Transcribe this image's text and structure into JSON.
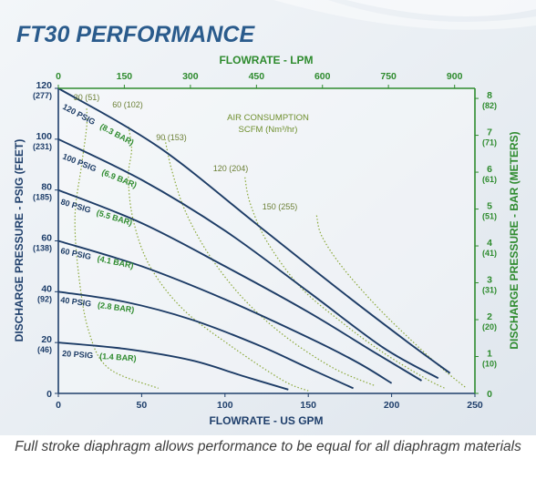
{
  "chart_data": {
    "type": "line",
    "title": "FT30 PERFORMANCE",
    "top_axis": {
      "label": "FLOWRATE - LPM",
      "ticks": [
        "0",
        "150",
        "300",
        "450",
        "600",
        "750",
        "900"
      ],
      "tick_values_gpm": [
        0,
        39.6,
        79.25,
        118.9,
        158.5,
        198.1,
        237.8
      ]
    },
    "x_axis": {
      "label": "FLOWRATE - US GPM",
      "ticks": [
        "0",
        "50",
        "100",
        "150",
        "200",
        "250"
      ],
      "range": [
        0,
        250
      ]
    },
    "y_axis_left": {
      "label": "DISCHARGE PRESSURE - PSIG (FEET)",
      "range": [
        0,
        120
      ],
      "ticks": [
        {
          "value": 0,
          "psig": "0",
          "feet": ""
        },
        {
          "value": 20,
          "psig": "20",
          "feet": "(46)"
        },
        {
          "value": 40,
          "psig": "40",
          "feet": "(92)"
        },
        {
          "value": 60,
          "psig": "60",
          "feet": "(138)"
        },
        {
          "value": 80,
          "psig": "80",
          "feet": "(185)"
        },
        {
          "value": 100,
          "psig": "100",
          "feet": "(231)"
        },
        {
          "value": 120,
          "psig": "120",
          "feet": "(277)"
        }
      ]
    },
    "y_axis_right": {
      "label": "DISCHARGE PRESSURE - BAR (METERS)",
      "ticks": [
        {
          "value": 0,
          "bar": "0",
          "meters": ""
        },
        {
          "value": 1,
          "bar": "1",
          "meters": "(10)"
        },
        {
          "value": 2,
          "bar": "2",
          "meters": "(20)"
        },
        {
          "value": 3,
          "bar": "3",
          "meters": "(31)"
        },
        {
          "value": 4,
          "bar": "4",
          "meters": "(41)"
        },
        {
          "value": 5,
          "bar": "5",
          "meters": "(51)"
        },
        {
          "value": 6,
          "bar": "6",
          "meters": "(61)"
        },
        {
          "value": 7,
          "bar": "7",
          "meters": "(71)"
        },
        {
          "value": 8,
          "bar": "8",
          "meters": "(82)"
        }
      ]
    },
    "pressure_curves": [
      {
        "psig": "120 PSIG",
        "bar": "(8.3 BAR)",
        "points": [
          [
            0,
            120
          ],
          [
            60,
            97
          ],
          [
            120,
            66
          ],
          [
            170,
            40
          ],
          [
            210,
            20
          ],
          [
            235,
            8
          ]
        ]
      },
      {
        "psig": "100 PSIG",
        "bar": "(6.9 BAR)",
        "points": [
          [
            0,
            100
          ],
          [
            50,
            84
          ],
          [
            100,
            64
          ],
          [
            150,
            40
          ],
          [
            195,
            18
          ],
          [
            228,
            6
          ]
        ]
      },
      {
        "psig": "80 PSIG",
        "bar": "(5.5 BAR)",
        "points": [
          [
            0,
            80
          ],
          [
            50,
            67
          ],
          [
            100,
            50
          ],
          [
            150,
            32
          ],
          [
            190,
            16
          ],
          [
            218,
            5
          ]
        ]
      },
      {
        "psig": "60 PSIG",
        "bar": "(4.1 BAR)",
        "points": [
          [
            0,
            60
          ],
          [
            50,
            50
          ],
          [
            100,
            37
          ],
          [
            150,
            22
          ],
          [
            180,
            12
          ],
          [
            200,
            4
          ]
        ]
      },
      {
        "psig": "40 PSIG",
        "bar": "(2.8 BAR)",
        "points": [
          [
            0,
            40
          ],
          [
            40,
            36
          ],
          [
            80,
            29
          ],
          [
            120,
            19
          ],
          [
            150,
            10
          ],
          [
            177,
            2
          ]
        ]
      },
      {
        "psig": "20 PSIG",
        "bar": "(1.4 BAR)",
        "points": [
          [
            0,
            20
          ],
          [
            40,
            17.5
          ],
          [
            80,
            13
          ],
          [
            110,
            7
          ],
          [
            138,
            1.5
          ]
        ]
      }
    ],
    "air_consumption": {
      "title": "AIR CONSUMPTION",
      "unit": "SCFM (Nm³/hr)",
      "curves": [
        {
          "label": "30 (51)",
          "points": [
            [
              17,
              112
            ],
            [
              17,
              105
            ],
            [
              14,
              90
            ],
            [
              10,
              70
            ],
            [
              12,
              48
            ],
            [
              18,
              25
            ],
            [
              30,
              10
            ],
            [
              60,
              2
            ]
          ]
        },
        {
          "label": "60 (102)",
          "points": [
            [
              42,
              105
            ],
            [
              44,
              96
            ],
            [
              42,
              85
            ],
            [
              45,
              68
            ],
            [
              55,
              50
            ],
            [
              75,
              33
            ],
            [
              105,
              18
            ],
            [
              135,
              5
            ],
            [
              150,
              1
            ]
          ]
        },
        {
          "label": "90 (153)",
          "points": [
            [
              64,
              100
            ],
            [
              68,
              88
            ],
            [
              76,
              72
            ],
            [
              90,
              55
            ],
            [
              110,
              38
            ],
            [
              135,
              23
            ],
            [
              165,
              10
            ],
            [
              190,
              3
            ]
          ]
        },
        {
          "label": "120 (204)",
          "points": [
            [
              112,
              85
            ],
            [
              115,
              75
            ],
            [
              125,
              60
            ],
            [
              145,
              42
            ],
            [
              170,
              28
            ],
            [
              195,
              16
            ],
            [
              220,
              6
            ],
            [
              232,
              2
            ]
          ]
        },
        {
          "label": "150 (255)",
          "points": [
            [
              155,
              70
            ],
            [
              158,
              62
            ],
            [
              170,
              50
            ],
            [
              190,
              35
            ],
            [
              210,
              22
            ],
            [
              230,
              10
            ],
            [
              245,
              2
            ]
          ]
        }
      ]
    }
  },
  "caption": "Full stroke diaphragm allows performance to be equal for all diaphragm materials",
  "colors": {
    "title": "#2a5b8c",
    "navy": "#1f3f6b",
    "green": "#2e8b2e",
    "curve": "#1d3c66",
    "air": "#8aa838",
    "grid": "#c9d2dc",
    "panel": "#e7ecf1"
  }
}
